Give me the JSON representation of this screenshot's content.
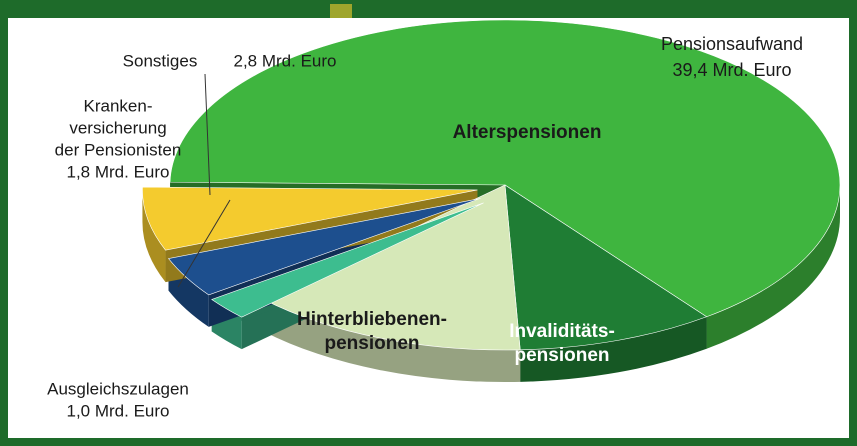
{
  "chart_data": {
    "type": "pie3d",
    "categories": [
      [
        "Alterspensionen"
      ],
      [
        "Invaliditäts-",
        "pensionen"
      ],
      [
        "Hinterbliebenen-",
        "pensionen"
      ],
      [
        "Ausgleichszulagen"
      ],
      [
        "Kranken-",
        "versicherung",
        "der Pensionisten"
      ],
      [
        "Sonstiges"
      ]
    ],
    "values": [
      29.0,
      4.3,
      6.1,
      1.0,
      1.8,
      2.8
    ],
    "value_labels": [
      null,
      null,
      null,
      "1,0 Mrd. Euro",
      "1,8 Mrd. Euro",
      "2,8 Mrd. Euro"
    ],
    "colors": [
      "#3fb53f",
      "#1f7d34",
      "#d6e8b8",
      "#3dbd8f",
      "#1d4f8e",
      "#f4cb2e"
    ],
    "annotations": [
      {
        "lines": [
          "Pensionsaufwand",
          "39,4 Mrd. Euro"
        ]
      }
    ]
  }
}
